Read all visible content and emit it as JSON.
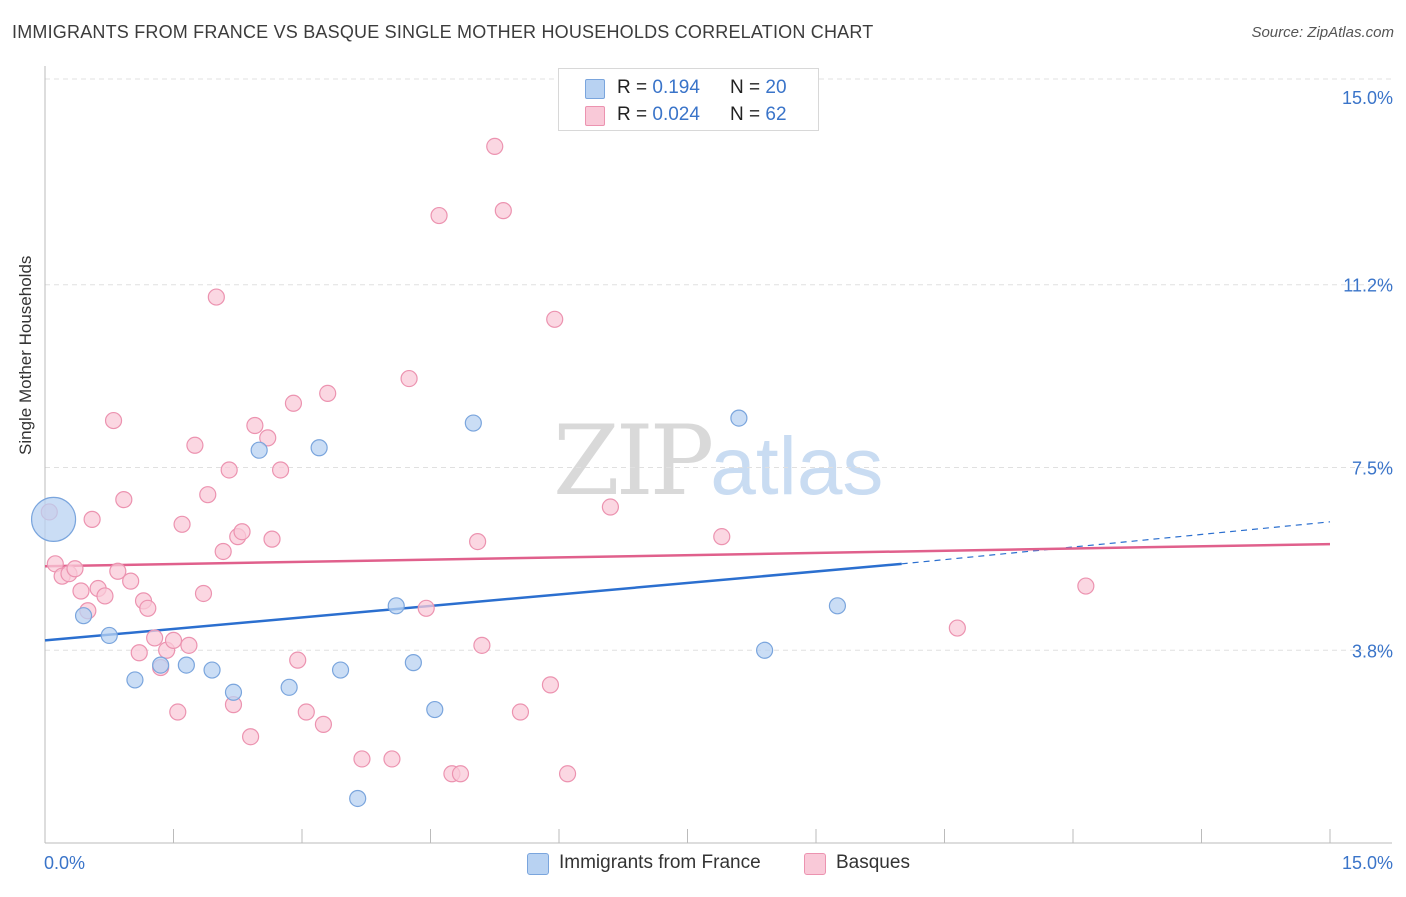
{
  "title": "IMMIGRANTS FROM FRANCE VS BASQUE SINGLE MOTHER HOUSEHOLDS CORRELATION CHART",
  "source": "Source: ZipAtlas.com",
  "watermark": {
    "zip": "ZIP",
    "atlas": "atlas"
  },
  "colors": {
    "france_fill": "#b8d2f2",
    "france_stroke": "#7aa5dd",
    "france_line": "#2b6fcf",
    "basque_fill": "#f9c9d8",
    "basque_stroke": "#ec93b0",
    "basque_line": "#e0608c",
    "axis_label": "#3a74c9",
    "grid": "#e0e0e0"
  },
  "legend": {
    "france": {
      "r_label": "R = ",
      "r_value": "0.194",
      "n_label": "N = ",
      "n_value": "20"
    },
    "basque": {
      "r_label": "R = ",
      "r_value": "0.024",
      "n_label": "N = ",
      "n_value": "62"
    }
  },
  "bottom_legend": {
    "france": "Immigrants from France",
    "basque": "Basques"
  },
  "chart_data": {
    "type": "scatter",
    "title": "IMMIGRANTS FROM FRANCE VS BASQUE SINGLE MOTHER HOUSEHOLDS CORRELATION CHART",
    "xlabel": "",
    "ylabel": "Single Mother Households",
    "xlim": [
      0,
      15
    ],
    "ylim": [
      0,
      15.4
    ],
    "x_tick_labels": [
      "0.0%",
      "15.0%"
    ],
    "y_tick_values": [
      3.8,
      7.5,
      11.2,
      15.0
    ],
    "y_tick_labels": [
      "3.8%",
      "7.5%",
      "11.2%",
      "15.0%"
    ],
    "grid": "horizontal dashed",
    "legend_position": "top-center",
    "series": [
      {
        "name": "Immigrants from France",
        "points": [
          {
            "x": 0.1,
            "y": 6.45,
            "big": true
          },
          {
            "x": 0.45,
            "y": 4.5
          },
          {
            "x": 0.75,
            "y": 4.1
          },
          {
            "x": 1.05,
            "y": 3.2
          },
          {
            "x": 1.35,
            "y": 3.5
          },
          {
            "x": 1.65,
            "y": 3.5
          },
          {
            "x": 1.95,
            "y": 3.4
          },
          {
            "x": 2.2,
            "y": 2.95
          },
          {
            "x": 2.5,
            "y": 7.85
          },
          {
            "x": 2.85,
            "y": 3.05
          },
          {
            "x": 3.2,
            "y": 7.9
          },
          {
            "x": 3.45,
            "y": 3.4
          },
          {
            "x": 3.65,
            "y": 0.8
          },
          {
            "x": 4.1,
            "y": 4.7
          },
          {
            "x": 4.3,
            "y": 3.55
          },
          {
            "x": 4.55,
            "y": 2.6
          },
          {
            "x": 5.0,
            "y": 8.4
          },
          {
            "x": 8.1,
            "y": 8.5
          },
          {
            "x": 8.4,
            "y": 3.8
          },
          {
            "x": 9.25,
            "y": 4.7
          }
        ],
        "trend": {
          "x0": 0.0,
          "y0": 4.0,
          "x1": 10.0,
          "y1": 5.55,
          "dash_x1": 15.0,
          "dash_y1": 6.4
        }
      },
      {
        "name": "Basques",
        "points": [
          {
            "x": 0.05,
            "y": 6.6
          },
          {
            "x": 0.12,
            "y": 5.55
          },
          {
            "x": 0.2,
            "y": 5.3
          },
          {
            "x": 0.28,
            "y": 5.35
          },
          {
            "x": 0.35,
            "y": 5.45
          },
          {
            "x": 0.42,
            "y": 5.0
          },
          {
            "x": 0.5,
            "y": 4.6
          },
          {
            "x": 0.55,
            "y": 6.45
          },
          {
            "x": 0.62,
            "y": 5.05
          },
          {
            "x": 0.7,
            "y": 4.9
          },
          {
            "x": 0.8,
            "y": 8.45
          },
          {
            "x": 0.85,
            "y": 5.4
          },
          {
            "x": 0.92,
            "y": 6.85
          },
          {
            "x": 1.0,
            "y": 5.2
          },
          {
            "x": 1.1,
            "y": 3.75
          },
          {
            "x": 1.15,
            "y": 4.8
          },
          {
            "x": 1.2,
            "y": 4.65
          },
          {
            "x": 1.28,
            "y": 4.05
          },
          {
            "x": 1.35,
            "y": 3.45
          },
          {
            "x": 1.42,
            "y": 3.8
          },
          {
            "x": 1.5,
            "y": 4.0
          },
          {
            "x": 1.55,
            "y": 2.55
          },
          {
            "x": 1.6,
            "y": 6.35
          },
          {
            "x": 1.68,
            "y": 3.9
          },
          {
            "x": 1.75,
            "y": 7.95
          },
          {
            "x": 1.85,
            "y": 4.95
          },
          {
            "x": 1.9,
            "y": 6.95
          },
          {
            "x": 2.0,
            "y": 10.95
          },
          {
            "x": 2.08,
            "y": 5.8
          },
          {
            "x": 2.15,
            "y": 7.45
          },
          {
            "x": 2.2,
            "y": 2.7
          },
          {
            "x": 2.25,
            "y": 6.1
          },
          {
            "x": 2.3,
            "y": 6.2
          },
          {
            "x": 2.4,
            "y": 2.05
          },
          {
            "x": 2.45,
            "y": 8.35
          },
          {
            "x": 2.6,
            "y": 8.1
          },
          {
            "x": 2.65,
            "y": 6.05
          },
          {
            "x": 2.75,
            "y": 7.45
          },
          {
            "x": 2.9,
            "y": 8.8
          },
          {
            "x": 2.95,
            "y": 3.6
          },
          {
            "x": 3.05,
            "y": 2.55
          },
          {
            "x": 3.25,
            "y": 2.3
          },
          {
            "x": 3.3,
            "y": 9.0
          },
          {
            "x": 3.7,
            "y": 1.6
          },
          {
            "x": 4.05,
            "y": 1.6
          },
          {
            "x": 4.25,
            "y": 9.3
          },
          {
            "x": 4.45,
            "y": 4.65
          },
          {
            "x": 4.6,
            "y": 12.6
          },
          {
            "x": 4.75,
            "y": 1.3
          },
          {
            "x": 4.85,
            "y": 1.3
          },
          {
            "x": 5.05,
            "y": 6.0
          },
          {
            "x": 5.1,
            "y": 3.9
          },
          {
            "x": 5.25,
            "y": 14.0
          },
          {
            "x": 5.35,
            "y": 12.7
          },
          {
            "x": 5.55,
            "y": 2.55
          },
          {
            "x": 5.9,
            "y": 3.1
          },
          {
            "x": 5.95,
            "y": 10.5
          },
          {
            "x": 6.1,
            "y": 1.3
          },
          {
            "x": 6.6,
            "y": 6.7
          },
          {
            "x": 7.9,
            "y": 6.1
          },
          {
            "x": 10.65,
            "y": 4.25
          },
          {
            "x": 12.15,
            "y": 5.1
          }
        ],
        "trend": {
          "x0": 0.0,
          "y0": 5.5,
          "x1": 15.0,
          "y1": 5.95
        }
      }
    ]
  }
}
